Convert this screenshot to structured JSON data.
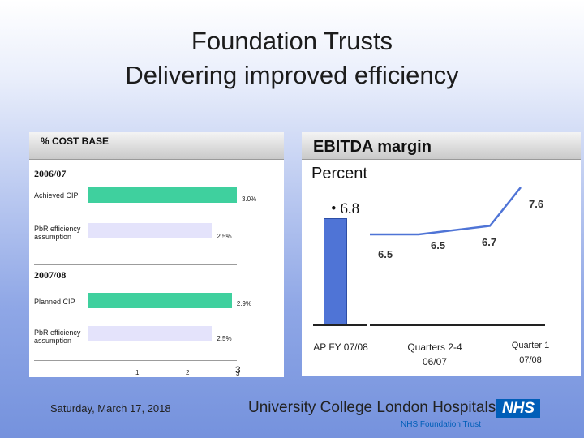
{
  "title_line1": "Foundation Trusts",
  "title_line2": "Delivering improved efficiency",
  "chart_data": [
    {
      "type": "bar",
      "orientation": "horizontal",
      "title": "% COST BASE",
      "groups": [
        {
          "name": "2006/07",
          "bars": [
            {
              "label": "Achieved CIP",
              "value": 3.0,
              "value_label": "3.0%",
              "color": "#3fd09e"
            },
            {
              "label": "PbR efficiency assumption",
              "value": 2.5,
              "value_label": "2.5%",
              "color": "#e4e3fb"
            }
          ]
        },
        {
          "name": "2007/08",
          "bars": [
            {
              "label": "Planned CIP",
              "value": 2.9,
              "value_label": "2.9%",
              "color": "#3fd09e"
            },
            {
              "label": "PbR efficiency assumption",
              "value": 2.5,
              "value_label": "2.5%",
              "color": "#e4e3fb"
            }
          ]
        }
      ],
      "x_ticks": [
        "1",
        "2",
        "3"
      ],
      "x_tick_overlap": "3",
      "xlim": [
        0,
        3
      ]
    },
    {
      "type": "bar+line",
      "title": "EBITDA margin",
      "subtitle": "Percent",
      "bar": {
        "category": "AP FY 07/08",
        "value": 6.8,
        "value_label": "• 6.8",
        "color": "#4f74d6"
      },
      "line": {
        "points": [
          {
            "value": 6.5,
            "label": "6.5"
          },
          {
            "value": 6.5,
            "label": "6.5"
          },
          {
            "value": 6.7,
            "label": "6.7"
          },
          {
            "value": 7.6,
            "label": "7.6"
          }
        ],
        "color": "#4f74d6"
      },
      "categories": [
        "AP FY 07/08",
        "Quarters 2-4 06/07",
        "Quarter 1 07/08"
      ]
    }
  ],
  "footer": {
    "date": "Saturday, March 17, 2018",
    "org": "University College London Hospitals",
    "nhs": "NHS",
    "nhs_ft": "NHS Foundation Trust"
  }
}
